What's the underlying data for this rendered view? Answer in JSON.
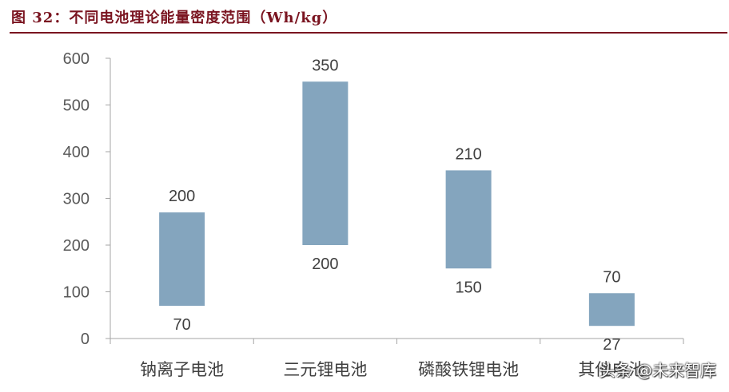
{
  "figure": {
    "title": "图 32：不同电池理论能量密度范围（Wh/kg）"
  },
  "watermark": "头条 @未来智库",
  "colors": {
    "bar": "#84a5be",
    "title": "#7a1420",
    "axis": "#a6a6a6"
  },
  "chart_data": {
    "type": "bar",
    "subtype": "floating-range",
    "categories": [
      "钠离子电池",
      "三元锂电池",
      "磷酸铁锂电池",
      "其他电池"
    ],
    "series": [
      {
        "low": [
          70,
          200,
          150,
          27
        ],
        "high": [
          200,
          350,
          210,
          70
        ]
      }
    ],
    "bar_top_values": [
      270,
      550,
      360,
      97
    ],
    "ylim": [
      0,
      600
    ],
    "yticks": [
      0,
      100,
      200,
      300,
      400,
      500,
      600
    ],
    "grid": false,
    "legend": "none"
  }
}
